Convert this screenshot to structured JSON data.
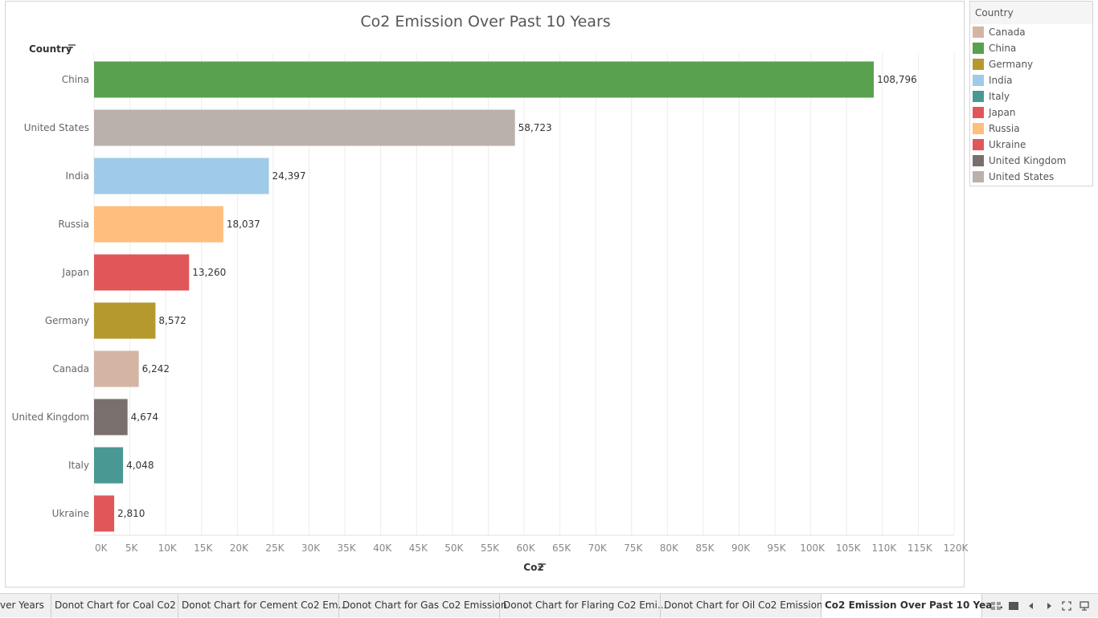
{
  "chart_data": {
    "type": "bar",
    "orientation": "horizontal",
    "title": "Co2 Emission Over Past 10 Years",
    "xlabel": "Co2",
    "ylabel": "Country",
    "categories": [
      "China",
      "United States",
      "India",
      "Russia",
      "Japan",
      "Germany",
      "Canada",
      "United Kingdom",
      "Italy",
      "Ukraine"
    ],
    "values": [
      108796,
      58723,
      24397,
      18037,
      13260,
      8572,
      6242,
      4674,
      4048,
      2810
    ],
    "value_labels": [
      "108,796",
      "58,723",
      "24,397",
      "18,037",
      "13,260",
      "8,572",
      "6,242",
      "4,674",
      "4,048",
      "2,810"
    ],
    "bar_colors": [
      "#59a14f",
      "#bab0ac",
      "#a0cbe8",
      "#ffbe7d",
      "#e15759",
      "#b6992d",
      "#d4b5a4",
      "#79706e",
      "#499894",
      "#e15759"
    ],
    "xlim": [
      0,
      120000
    ],
    "xticks": [
      0,
      5000,
      10000,
      15000,
      20000,
      25000,
      30000,
      35000,
      40000,
      45000,
      50000,
      55000,
      60000,
      65000,
      70000,
      75000,
      80000,
      85000,
      90000,
      95000,
      100000,
      105000,
      110000,
      115000,
      120000
    ],
    "xtick_labels": [
      "0K",
      "5K",
      "10K",
      "15K",
      "20K",
      "25K",
      "30K",
      "35K",
      "40K",
      "45K",
      "50K",
      "55K",
      "60K",
      "65K",
      "70K",
      "75K",
      "80K",
      "85K",
      "90K",
      "95K",
      "100K",
      "105K",
      "110K",
      "115K",
      "120K"
    ],
    "grid": true,
    "legend_position": "right"
  },
  "legend": {
    "title": "Country",
    "items": [
      {
        "label": "Canada",
        "color": "#d4b5a4"
      },
      {
        "label": "China",
        "color": "#59a14f"
      },
      {
        "label": "Germany",
        "color": "#b6992d"
      },
      {
        "label": "India",
        "color": "#a0cbe8"
      },
      {
        "label": "Italy",
        "color": "#499894"
      },
      {
        "label": "Japan",
        "color": "#e15759"
      },
      {
        "label": "Russia",
        "color": "#ffbe7d"
      },
      {
        "label": "Ukraine",
        "color": "#e15759"
      },
      {
        "label": "United Kingdom",
        "color": "#79706e"
      },
      {
        "label": "United States",
        "color": "#bab0ac"
      }
    ]
  },
  "tabs": [
    {
      "label": "ver Years",
      "active": false
    },
    {
      "label": "Donot Chart for Coal Co2",
      "active": false
    },
    {
      "label": "Donot Chart for Cement Co2 Em...",
      "active": false
    },
    {
      "label": "Donot Chart for Gas Co2 Emission",
      "active": false
    },
    {
      "label": "Donot Chart for Flaring Co2 Emi...",
      "active": false
    },
    {
      "label": "Donot Chart for Oil Co2 Emission",
      "active": false
    },
    {
      "label": "Co2 Emission Over Past 10 Yea...",
      "active": true
    }
  ],
  "nav_icons": [
    "sheet-grid-icon",
    "sheet-single-icon",
    "prev-arrow-icon",
    "next-arrow-icon",
    "fullscreen-icon",
    "presentation-icon"
  ]
}
